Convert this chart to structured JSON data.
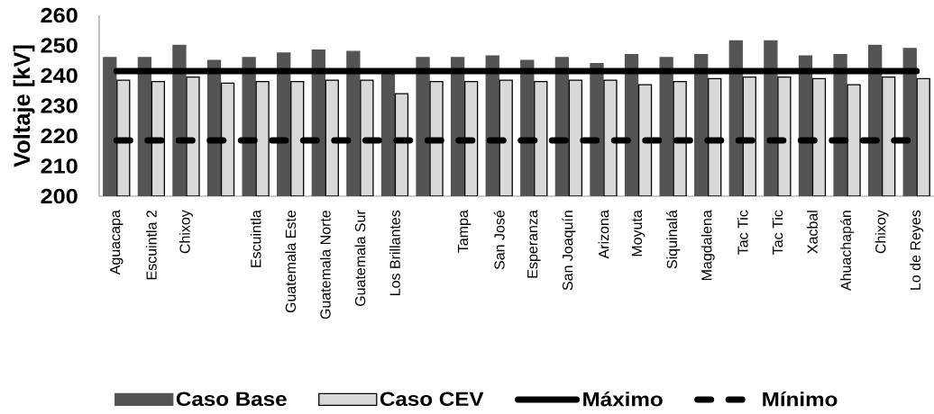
{
  "chart_data": {
    "type": "bar",
    "ylabel": "Voltaje [kV]",
    "categories": [
      "Aguacapa",
      "Escuintla 2",
      "Chixoy",
      null,
      "Escuintla",
      "Guatemala Este",
      "Guatemala Norte",
      "Guatemala Sur",
      "Los Brillantes",
      null,
      "Tampa",
      "San José",
      "Esperanza",
      "San Joaquín",
      "Arizona",
      "Moyuta",
      "Siquinalá",
      "Magdalena",
      "Tac Tic",
      "Tac Tic",
      "Xacbal",
      "Ahuachapán",
      "Chixoy",
      "Lo de Reyes"
    ],
    "series": [
      {
        "name": "Caso Base",
        "color": "#545454",
        "values": [
          246,
          246,
          250,
          245,
          246,
          247.5,
          248.5,
          248,
          241.5,
          246,
          246,
          246.5,
          245,
          246,
          244,
          247,
          246,
          247,
          251.5,
          251.5,
          246.5,
          247,
          250,
          249
        ]
      },
      {
        "name": "Caso CEV",
        "color": "#d9d9d9",
        "values": [
          238.5,
          238,
          239.5,
          237.5,
          238,
          238,
          238.5,
          238.5,
          234,
          238,
          238,
          238.5,
          238,
          238.5,
          238.5,
          237,
          238,
          239,
          239.5,
          239.5,
          239,
          237,
          239.5,
          239
        ]
      },
      {
        "name": "Máximo",
        "type": "line",
        "color": "#000000",
        "line_style": "solid",
        "values": [
          241.5,
          241.5,
          241.5,
          241.5,
          241.5,
          241.5,
          241.5,
          241.5,
          241.5,
          241.5,
          241.5,
          241.5,
          241.5,
          241.5,
          241.5,
          241.5,
          241.5,
          241.5,
          241.5,
          241.5,
          241.5,
          241.5,
          241.5,
          241.5
        ]
      },
      {
        "name": "Mínimo",
        "type": "line",
        "color": "#000000",
        "line_style": "dashed",
        "values": [
          218.5,
          218.5,
          218.5,
          218.5,
          218.5,
          218.5,
          218.5,
          218.5,
          218.5,
          218.5,
          218.5,
          218.5,
          218.5,
          218.5,
          218.5,
          218.5,
          218.5,
          218.5,
          218.5,
          218.5,
          218.5,
          218.5,
          218.5,
          218.5
        ]
      }
    ],
    "ylim": [
      200,
      260
    ],
    "yticks": [
      200,
      210,
      220,
      230,
      240,
      250,
      260
    ],
    "legend": "bottom"
  }
}
